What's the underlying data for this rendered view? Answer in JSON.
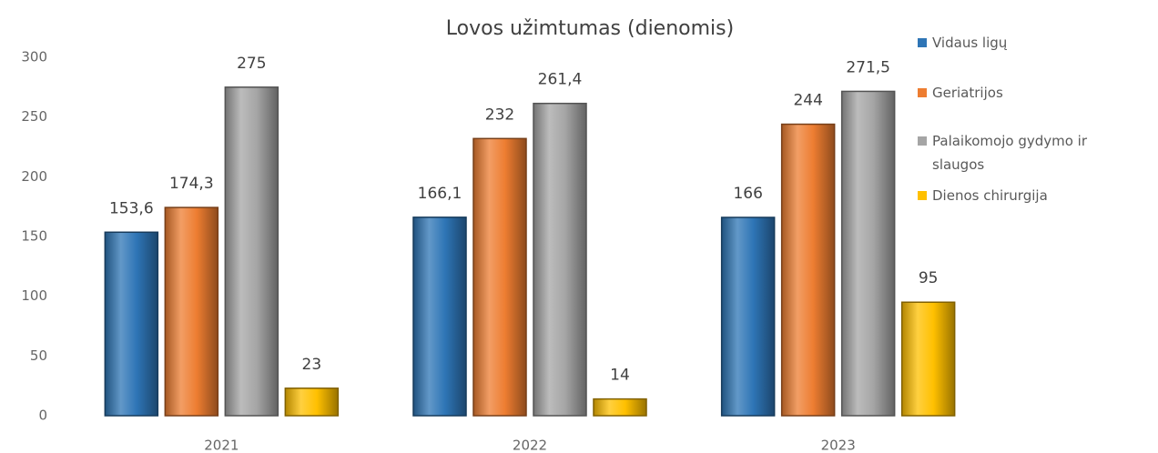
{
  "chart_data": {
    "type": "bar",
    "title": "Lovos užimtumas (dienomis)",
    "categories": [
      "2021",
      "2022",
      "2023"
    ],
    "series": [
      {
        "name": "Vidaus ligų",
        "color": "#2e75b6",
        "values": [
          153.6,
          166.1,
          166
        ],
        "value_labels": [
          "153,6",
          "166,1",
          "166"
        ]
      },
      {
        "name": "Geriatrijos",
        "color": "#ed7d31",
        "values": [
          174.3,
          232,
          244
        ],
        "value_labels": [
          "174,3",
          "232",
          "244"
        ]
      },
      {
        "name": "Palaikomojo gydymo ir slaugos",
        "color": "#a5a5a5",
        "values": [
          275,
          261.4,
          271.5
        ],
        "value_labels": [
          "275",
          "261,4",
          "271,5"
        ]
      },
      {
        "name": "Dienos chirurgija",
        "color": "#ffc000",
        "values": [
          23,
          14,
          95
        ],
        "value_labels": [
          "23",
          "14",
          "95"
        ]
      }
    ],
    "ylim": [
      0,
      300
    ],
    "yticks": [
      0,
      50,
      100,
      150,
      200,
      250,
      300
    ],
    "grid": false,
    "legend": "right"
  }
}
